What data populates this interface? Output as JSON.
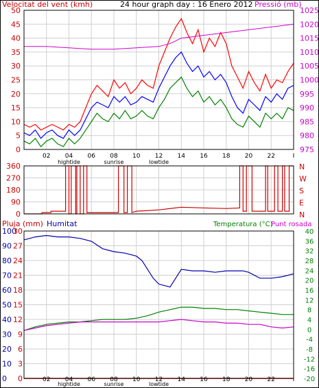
{
  "chart_data": [
    {
      "type": "line",
      "title": "24 hour graph day : 16 Enero 2012",
      "ylabel": "Velocitat del vent (kmh)",
      "y2label": "Pressió (mb)",
      "ylim": [
        0,
        50
      ],
      "y2lim": [
        975,
        1025
      ],
      "yticks": [
        "0",
        "5",
        "10",
        "15",
        "20",
        "25",
        "30",
        "35",
        "40",
        "45",
        "50"
      ],
      "y2ticks": [
        "975",
        "980",
        "985",
        "990",
        "995",
        "1000",
        "1005",
        "1010",
        "1015",
        "1020",
        "1025"
      ],
      "xlim": [
        0,
        24
      ],
      "xticks": [
        "02",
        "04",
        "06",
        "08",
        "10",
        "12",
        "14",
        "16",
        "18",
        "20",
        "22",
        "I"
      ],
      "xtick_hours": [
        2,
        4,
        6,
        8,
        10,
        12,
        14,
        16,
        18,
        20,
        22,
        24
      ],
      "tide_labels": [
        {
          "text": "hightide",
          "hour": 4
        },
        {
          "text": "sunrise",
          "hour": 8
        },
        {
          "text": "lowtide",
          "hour": 12
        }
      ],
      "grid": true,
      "colors": {
        "gust": "#ff0000",
        "avg": "#0000ff",
        "min": "#008000",
        "pressure": "#cc00cc"
      },
      "series": [
        {
          "key": "gust",
          "color": "#ff0000",
          "x": [
            0,
            0.5,
            1,
            1.5,
            2,
            2.5,
            3,
            3.5,
            4,
            4.5,
            5,
            5.5,
            6,
            6.5,
            7,
            7.5,
            8,
            8.5,
            9,
            9.5,
            10,
            10.5,
            11,
            11.5,
            12,
            12.5,
            13,
            13.5,
            14,
            14.5,
            15,
            15.5,
            16,
            16.5,
            17,
            17.5,
            18,
            18.5,
            19,
            19.5,
            20,
            20.5,
            21,
            21.5,
            22,
            22.5,
            23,
            23.5,
            24
          ],
          "y": [
            9,
            8,
            9,
            7,
            8,
            9,
            8,
            7,
            9,
            8,
            10,
            15,
            20,
            23,
            21,
            19,
            25,
            22,
            24,
            20,
            22,
            25,
            23,
            22,
            30,
            35,
            40,
            44,
            47,
            42,
            38,
            43,
            35,
            40,
            37,
            42,
            38,
            30,
            26,
            22,
            28,
            24,
            21,
            27,
            22,
            25,
            24,
            28,
            31
          ]
        },
        {
          "key": "avg",
          "color": "#0000ff",
          "x": [
            0,
            0.5,
            1,
            1.5,
            2,
            2.5,
            3,
            3.5,
            4,
            4.5,
            5,
            5.5,
            6,
            6.5,
            7,
            7.5,
            8,
            8.5,
            9,
            9.5,
            10,
            10.5,
            11,
            11.5,
            12,
            12.5,
            13,
            13.5,
            14,
            14.5,
            15,
            15.5,
            16,
            16.5,
            17,
            17.5,
            18,
            18.5,
            19,
            19.5,
            20,
            20.5,
            21,
            21.5,
            22,
            22.5,
            23,
            23.5,
            24
          ],
          "y": [
            6,
            5,
            7,
            4,
            6,
            7,
            5,
            4,
            7,
            5,
            7,
            11,
            15,
            17,
            16,
            15,
            19,
            17,
            19,
            16,
            17,
            19,
            18,
            17,
            22,
            26,
            30,
            33,
            35,
            31,
            28,
            30,
            26,
            28,
            25,
            27,
            24,
            19,
            15,
            13,
            18,
            16,
            14,
            19,
            17,
            20,
            18,
            22,
            23
          ]
        },
        {
          "key": "min",
          "color": "#008000",
          "x": [
            0,
            0.5,
            1,
            1.5,
            2,
            2.5,
            3,
            3.5,
            4,
            4.5,
            5,
            5.5,
            6,
            6.5,
            7,
            7.5,
            8,
            8.5,
            9,
            9.5,
            10,
            10.5,
            11,
            11.5,
            12,
            12.5,
            13,
            13.5,
            14,
            14.5,
            15,
            15.5,
            16,
            16.5,
            17,
            17.5,
            18,
            18.5,
            19,
            19.5,
            20,
            20.5,
            21,
            21.5,
            22,
            22.5,
            23,
            23.5,
            24
          ],
          "y": [
            3,
            2,
            4,
            1,
            3,
            4,
            2,
            1,
            4,
            2,
            4,
            7,
            10,
            13,
            11,
            10,
            13,
            11,
            14,
            11,
            12,
            14,
            12,
            11,
            15,
            18,
            22,
            24,
            26,
            22,
            19,
            21,
            17,
            19,
            16,
            18,
            15,
            11,
            9,
            8,
            12,
            10,
            8,
            13,
            11,
            13,
            11,
            15,
            14
          ]
        },
        {
          "key": "pressure",
          "color": "#cc00cc",
          "x": [
            0,
            2,
            4,
            6,
            8,
            10,
            12,
            13,
            14,
            16,
            18,
            20,
            22,
            24
          ],
          "y": [
            1012,
            1012,
            1011.5,
            1011,
            1011,
            1011.5,
            1012,
            1013,
            1015,
            1016,
            1017,
            1018,
            1019,
            1020
          ]
        }
      ]
    },
    {
      "type": "line",
      "ylim": [
        0,
        360
      ],
      "yticks": [
        "0",
        "90",
        "180",
        "270",
        "360"
      ],
      "right_labels": [
        "N",
        "W",
        "S",
        "E",
        "N"
      ],
      "xlim": [
        0,
        24
      ],
      "grid": true,
      "series": [
        {
          "key": "direction",
          "color": "#cc0000",
          "x": [
            0,
            1.6,
            1.6,
            2.4,
            2.4,
            3.7,
            3.7,
            4.0,
            4.0,
            4.2,
            4.2,
            4.6,
            4.6,
            4.7,
            4.7,
            5.0,
            5.0,
            5.3,
            5.3,
            5.6,
            5.6,
            8.4,
            8.4,
            8.9,
            8.9,
            9.2,
            9.2,
            9.6,
            9.6,
            10.0,
            12,
            14,
            16,
            18,
            19.2,
            19.2,
            19.5,
            19.5,
            19.8,
            19.8,
            20.1,
            20.1,
            20.3,
            20.3,
            21.5,
            21.5,
            21.7,
            21.7,
            22.3,
            22.3,
            22.6,
            22.6,
            23.0,
            23.0,
            23.2,
            23.2,
            23.6,
            23.6,
            24
          ],
          "y": [
            0,
            0,
            10,
            10,
            20,
            20,
            360,
            360,
            0,
            0,
            360,
            360,
            0,
            0,
            360,
            360,
            0,
            0,
            360,
            360,
            10,
            10,
            360,
            360,
            10,
            10,
            360,
            360,
            10,
            20,
            30,
            50,
            45,
            40,
            45,
            360,
            360,
            20,
            20,
            360,
            360,
            360,
            360,
            20,
            20,
            360,
            360,
            20,
            20,
            360,
            360,
            20,
            20,
            360,
            360,
            20,
            20,
            360,
            360
          ]
        }
      ]
    },
    {
      "type": "line",
      "ylabel": "Pluja (mm)",
      "ylabel2": "Humitat",
      "y2label": "Temperatura (°C)",
      "y3label": "Punt rosada",
      "rain_ticks": [
        "0",
        "3",
        "6",
        "9",
        "12",
        "15",
        "18",
        "21",
        "24",
        "27",
        "30"
      ],
      "humidity_ticks": [
        "0",
        "10",
        "20",
        "30",
        "40",
        "50",
        "60",
        "70",
        "80",
        "90",
        "100"
      ],
      "temp_ticks": [
        "-20",
        "-16",
        "-12",
        "-8",
        "-4",
        "0",
        "4",
        "8",
        "12",
        "16",
        "20",
        "24",
        "28",
        "32",
        "36",
        "40"
      ],
      "xlim": [
        0,
        24
      ],
      "xticks": [
        "02",
        "04",
        "06",
        "08",
        "10",
        "12",
        "14",
        "16",
        "18",
        "20",
        "22",
        "I"
      ],
      "xtick_hours": [
        2,
        4,
        6,
        8,
        10,
        12,
        14,
        16,
        18,
        20,
        22,
        24
      ],
      "tide_labels": [
        {
          "text": "hightide",
          "hour": 4
        },
        {
          "text": "sunrise",
          "hour": 8
        },
        {
          "text": "lowtide",
          "hour": 12
        }
      ],
      "grid": true,
      "colors": {
        "humidity": "#0000aa",
        "temperature": "#008000",
        "dewpoint": "#cc00cc",
        "rain": "#cc0000"
      },
      "series": [
        {
          "key": "humidity",
          "color": "#0000aa",
          "x": [
            0,
            1,
            2,
            3,
            4,
            5,
            6,
            7,
            8,
            9,
            10,
            10.5,
            11,
            11.5,
            12,
            12.5,
            13,
            13.5,
            14,
            15,
            16,
            17,
            18,
            19,
            19.5,
            20,
            21,
            22,
            23,
            24
          ],
          "y": [
            94,
            96,
            97,
            96,
            96,
            95,
            93,
            88,
            86,
            85,
            83,
            80,
            74,
            68,
            64,
            63,
            62,
            68,
            74,
            73,
            73,
            72,
            73,
            73,
            73,
            72,
            68,
            68,
            69,
            71
          ]
        },
        {
          "key": "temperature",
          "color": "#008000",
          "x": [
            0,
            1,
            2,
            3,
            4,
            5,
            6,
            7,
            8,
            9,
            10,
            11,
            12,
            13,
            14,
            15,
            16,
            17,
            18,
            19,
            20,
            21,
            22,
            23,
            24
          ],
          "y": [
            -0.5,
            1,
            2,
            2.5,
            3,
            3,
            3.5,
            4,
            4,
            4,
            4.5,
            5.5,
            7,
            8,
            9,
            9,
            8.5,
            8.5,
            8,
            8,
            7.5,
            7,
            6.5,
            6,
            6
          ]
        },
        {
          "key": "dewpoint",
          "color": "#cc00cc",
          "x": [
            0,
            1,
            2,
            3,
            4,
            5,
            6,
            7,
            8,
            9,
            10,
            11,
            12,
            13,
            14,
            15,
            16,
            17,
            18,
            19,
            20,
            21,
            22,
            23,
            24
          ],
          "y": [
            -0.5,
            0.5,
            1.5,
            2,
            2.5,
            3,
            3,
            3,
            3,
            3,
            3,
            3,
            3,
            3.5,
            4,
            3.5,
            3,
            3,
            2.5,
            2.5,
            2,
            2,
            1,
            0.5,
            1
          ]
        },
        {
          "key": "rain",
          "color": "#cc0000",
          "x": [
            0,
            24
          ],
          "y": [
            0,
            0
          ]
        }
      ]
    }
  ]
}
